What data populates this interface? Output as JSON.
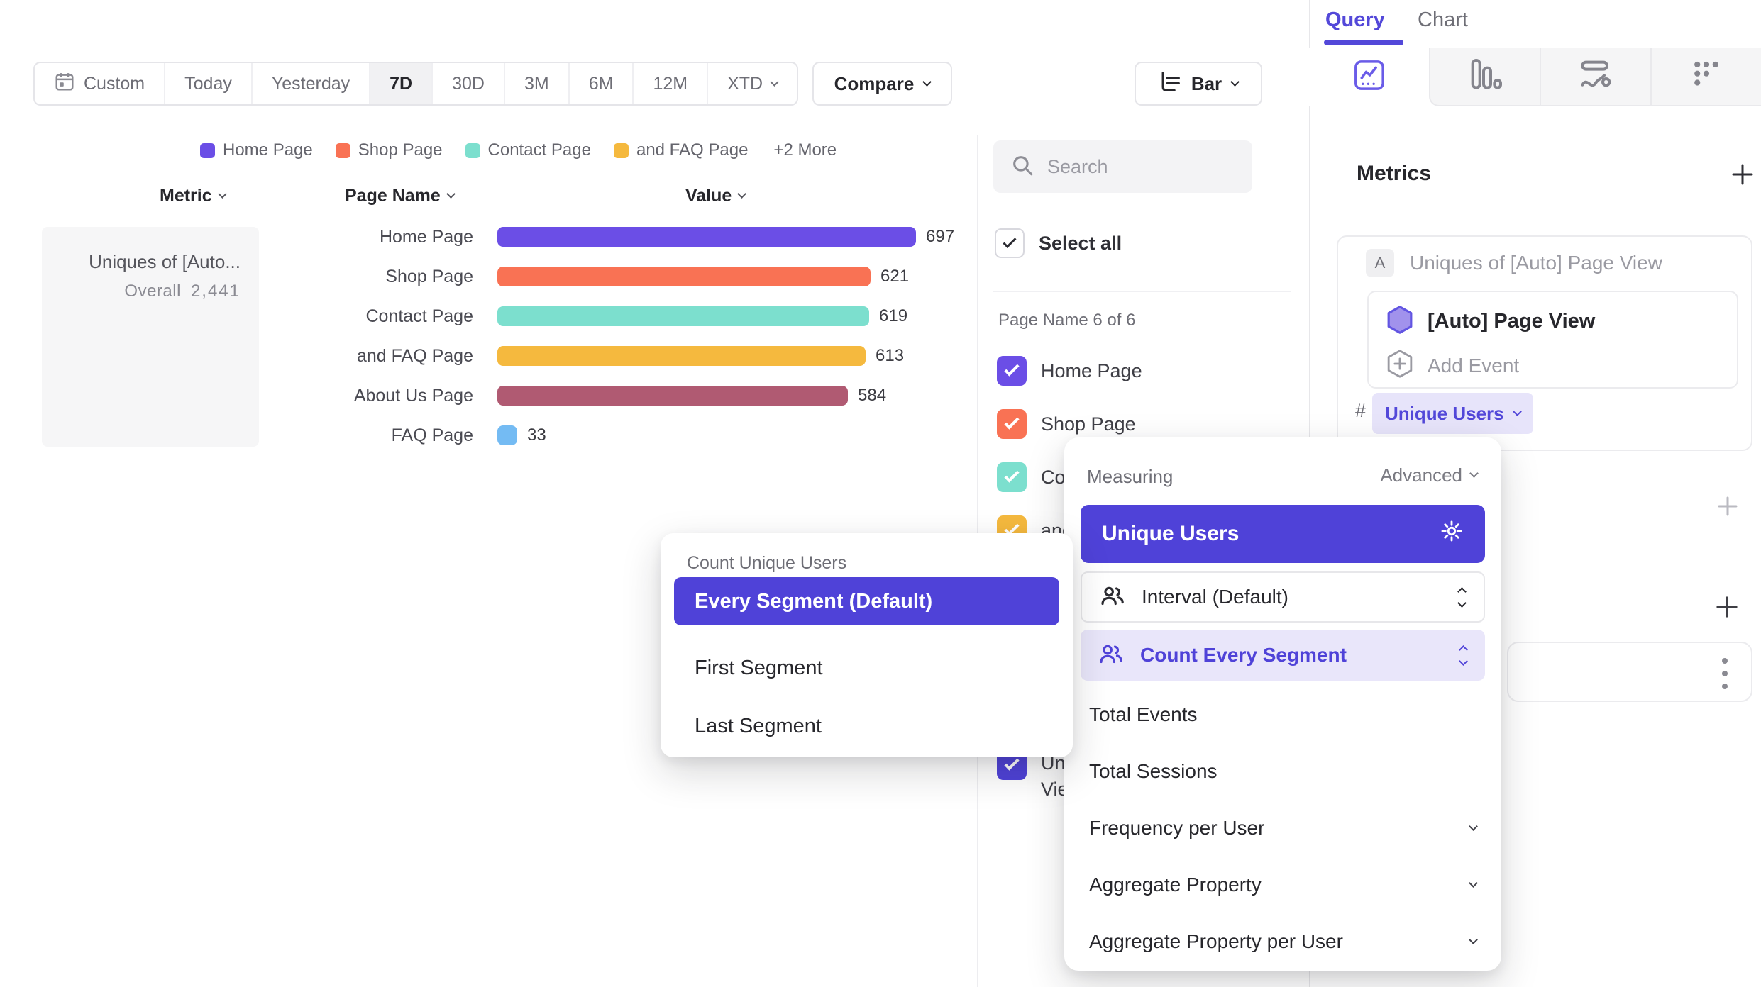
{
  "toolbar": {
    "date_ranges": [
      "Custom",
      "Today",
      "Yesterday",
      "7D",
      "30D",
      "3M",
      "6M",
      "12M",
      "XTD"
    ],
    "selected_range": "7D",
    "compare_label": "Compare",
    "chart_type_label": "Bar"
  },
  "legend": {
    "items": [
      {
        "label": "Home Page",
        "color": "#6B4EE6"
      },
      {
        "label": "Shop Page",
        "color": "#F97254"
      },
      {
        "label": "Contact Page",
        "color": "#7CDFCE"
      },
      {
        "label": "and FAQ Page",
        "color": "#F5B93E"
      }
    ],
    "more_label": "+2 More"
  },
  "table": {
    "headers": {
      "metric": "Metric",
      "page_name": "Page Name",
      "value": "Value"
    }
  },
  "metric_summary": {
    "title": "Uniques of [Auto...",
    "overall_label": "Overall",
    "overall_value": "2,441"
  },
  "chart_data": {
    "type": "bar",
    "orientation": "horizontal",
    "series_label": "Uniques of [Auto] Page View",
    "categories": [
      "Home Page",
      "Shop Page",
      "Contact Page",
      "and FAQ Page",
      "About Us Page",
      "FAQ Page"
    ],
    "values": [
      697,
      621,
      619,
      613,
      584,
      33
    ],
    "colors": [
      "#6B4EE6",
      "#F97254",
      "#7CDFCE",
      "#F5B93E",
      "#B05A72",
      "#74BBF3"
    ],
    "value_labels_shown": true,
    "xlim": [
      0,
      710
    ],
    "overall_total": "2,441",
    "grid": false,
    "legend_position": "top"
  },
  "segments_panel": {
    "search_placeholder": "Search",
    "select_all_label": "Select all",
    "group_label": "Page Name 6 of 6",
    "items": [
      {
        "label": "Home Page",
        "color": "#6B4EE6",
        "checked": true
      },
      {
        "label": "Shop Page",
        "color": "#F97254",
        "checked": true
      },
      {
        "label": "Contact Page",
        "color": "#7CDFCE",
        "checked": true
      },
      {
        "label": "and FAQ Page",
        "color": "#F5B93E",
        "checked": true
      },
      {
        "label": "About Us Page",
        "color": "#B05A72",
        "checked": true
      },
      {
        "label": "FAQ Page",
        "color": "#74BBF3",
        "checked": true
      }
    ],
    "metric_item": {
      "label": "Uniques of [Auto] Page View",
      "color": "#4F42D8",
      "checked": true
    }
  },
  "query_panel": {
    "tabs": {
      "query": "Query",
      "chart": "Chart"
    },
    "active_tab": "Query",
    "metrics_title": "Metrics",
    "metric_card": {
      "badge": "A",
      "title": "Uniques of [Auto] Page View",
      "event_name": "[Auto] Page View",
      "add_event_label": "Add Event",
      "aggregation_prefix": "#",
      "aggregation_label": "Unique Users"
    }
  },
  "measuring_popup": {
    "title": "Measuring",
    "advanced_label": "Advanced",
    "selected_option": "Unique Users",
    "interval_label": "Interval (Default)",
    "segment_mode_label": "Count Every Segment",
    "options": [
      {
        "label": "Total Events",
        "has_chevron": false
      },
      {
        "label": "Total Sessions",
        "has_chevron": false
      },
      {
        "label": "Frequency per User",
        "has_chevron": true
      },
      {
        "label": "Aggregate Property",
        "has_chevron": true
      },
      {
        "label": "Aggregate Property per User",
        "has_chevron": true
      }
    ]
  },
  "count_popup": {
    "title": "Count Unique Users",
    "options": [
      {
        "label": "Every Segment (Default)",
        "selected": true
      },
      {
        "label": "First Segment",
        "selected": false
      },
      {
        "label": "Last Segment",
        "selected": false
      }
    ]
  },
  "colors": {
    "accent": "#4F42D8",
    "accent_light": "#E9E6FA",
    "tab_accent": "#5348D9"
  }
}
